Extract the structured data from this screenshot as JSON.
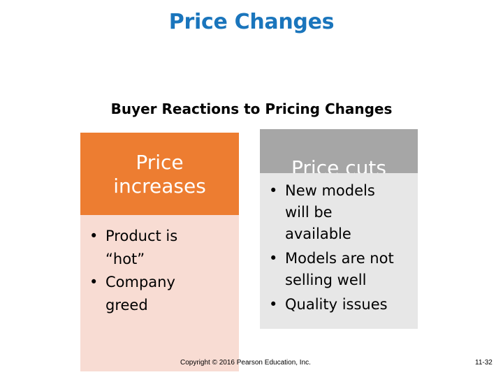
{
  "slide": {
    "title": "Price Changes",
    "subtitle": "Buyer Reactions to Pricing Changes",
    "copyright": "Copyright © 2016 Pearson Education, Inc.",
    "page_number": "11-32"
  },
  "left_panel": {
    "heading_line1": "Price",
    "heading_line2": "increases",
    "bullets": [
      "Product is “hot”",
      "Company greed"
    ],
    "bullet_glyph": "•"
  },
  "right_panel": {
    "heading": "Price cuts",
    "bullets": [
      "New models will be available",
      "Models are not selling well",
      "Quality issues"
    ],
    "bullet_glyph": "•"
  },
  "colors": {
    "title": "#1a75bc",
    "left_heading_bg": "#ed7d31",
    "left_body_bg": "#f8dcd3",
    "right_heading_bg": "#a6a6a6",
    "right_body_bg": "#e7e7e7"
  }
}
